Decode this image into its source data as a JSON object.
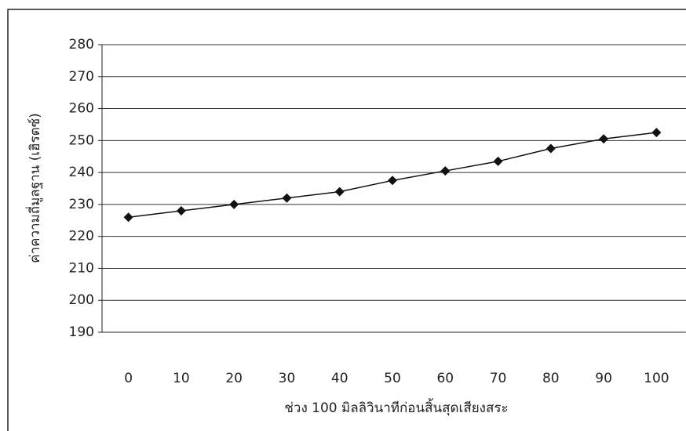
{
  "chart_data": {
    "type": "line",
    "y_label": "ค่าความถี่มูลฐาน (เฮิรตซ์)",
    "x_label": "ช่วง 100 มิลลิวินาทีก่อนสิ้นสุดเสียงสระ",
    "categories": [
      "0",
      "10",
      "20",
      "30",
      "40",
      "50",
      "60",
      "70",
      "80",
      "90",
      "100"
    ],
    "values": [
      226,
      228,
      230,
      232,
      234,
      237.5,
      240.5,
      243.5,
      247.5,
      250.5,
      252.5
    ],
    "color": "#111111",
    "ylim": [
      190,
      280
    ],
    "yticks": [
      190,
      200,
      210,
      220,
      230,
      240,
      250,
      260,
      270,
      280
    ],
    "grid": true
  }
}
